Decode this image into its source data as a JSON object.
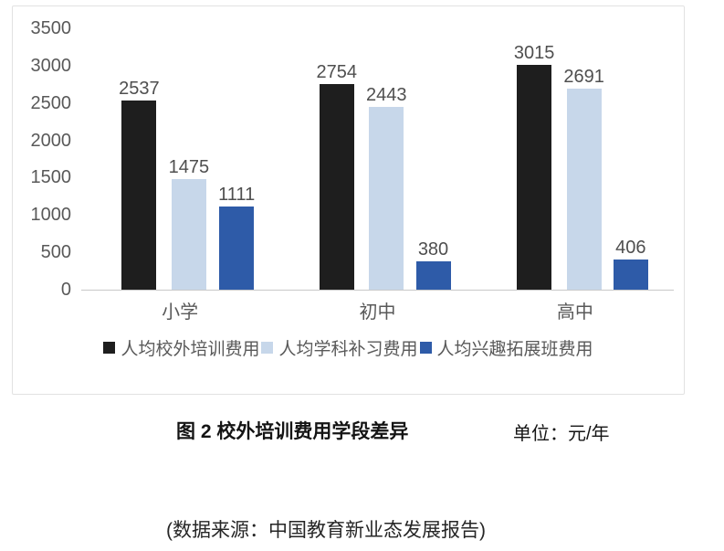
{
  "chart_data": {
    "type": "bar",
    "categories": [
      "小学",
      "初中",
      "高中"
    ],
    "series": [
      {
        "name": "人均校外培训费用",
        "color": "#1e1e1e",
        "values": [
          2537,
          2754,
          3015
        ]
      },
      {
        "name": "人均学科补习费用",
        "color": "#c7d7ea",
        "values": [
          1475,
          2443,
          2691
        ]
      },
      {
        "name": "人均兴趣拓展班费用",
        "color": "#2e5ba8",
        "values": [
          1111,
          380,
          406
        ]
      }
    ],
    "title": "图 2 校外培训费用学段差异",
    "xlabel": "",
    "ylabel": "",
    "ylim": [
      0,
      3500
    ],
    "yticks": [
      0,
      500,
      1000,
      1500,
      2000,
      2500,
      3000,
      3500
    ],
    "grid": false,
    "legend_position": "bottom",
    "data_labels": true
  },
  "caption": {
    "title": "图 2 校外培训费用学段差异",
    "unit_label": "单位：元/年"
  },
  "source_note": "(数据来源：中国教育新业态发展报告)",
  "colors": {
    "axis_text": "#595959",
    "value_text": "#4f4f4f",
    "baseline": "#c9c9c9",
    "frame_border": "#e2e2e2",
    "background": "#ffffff"
  }
}
